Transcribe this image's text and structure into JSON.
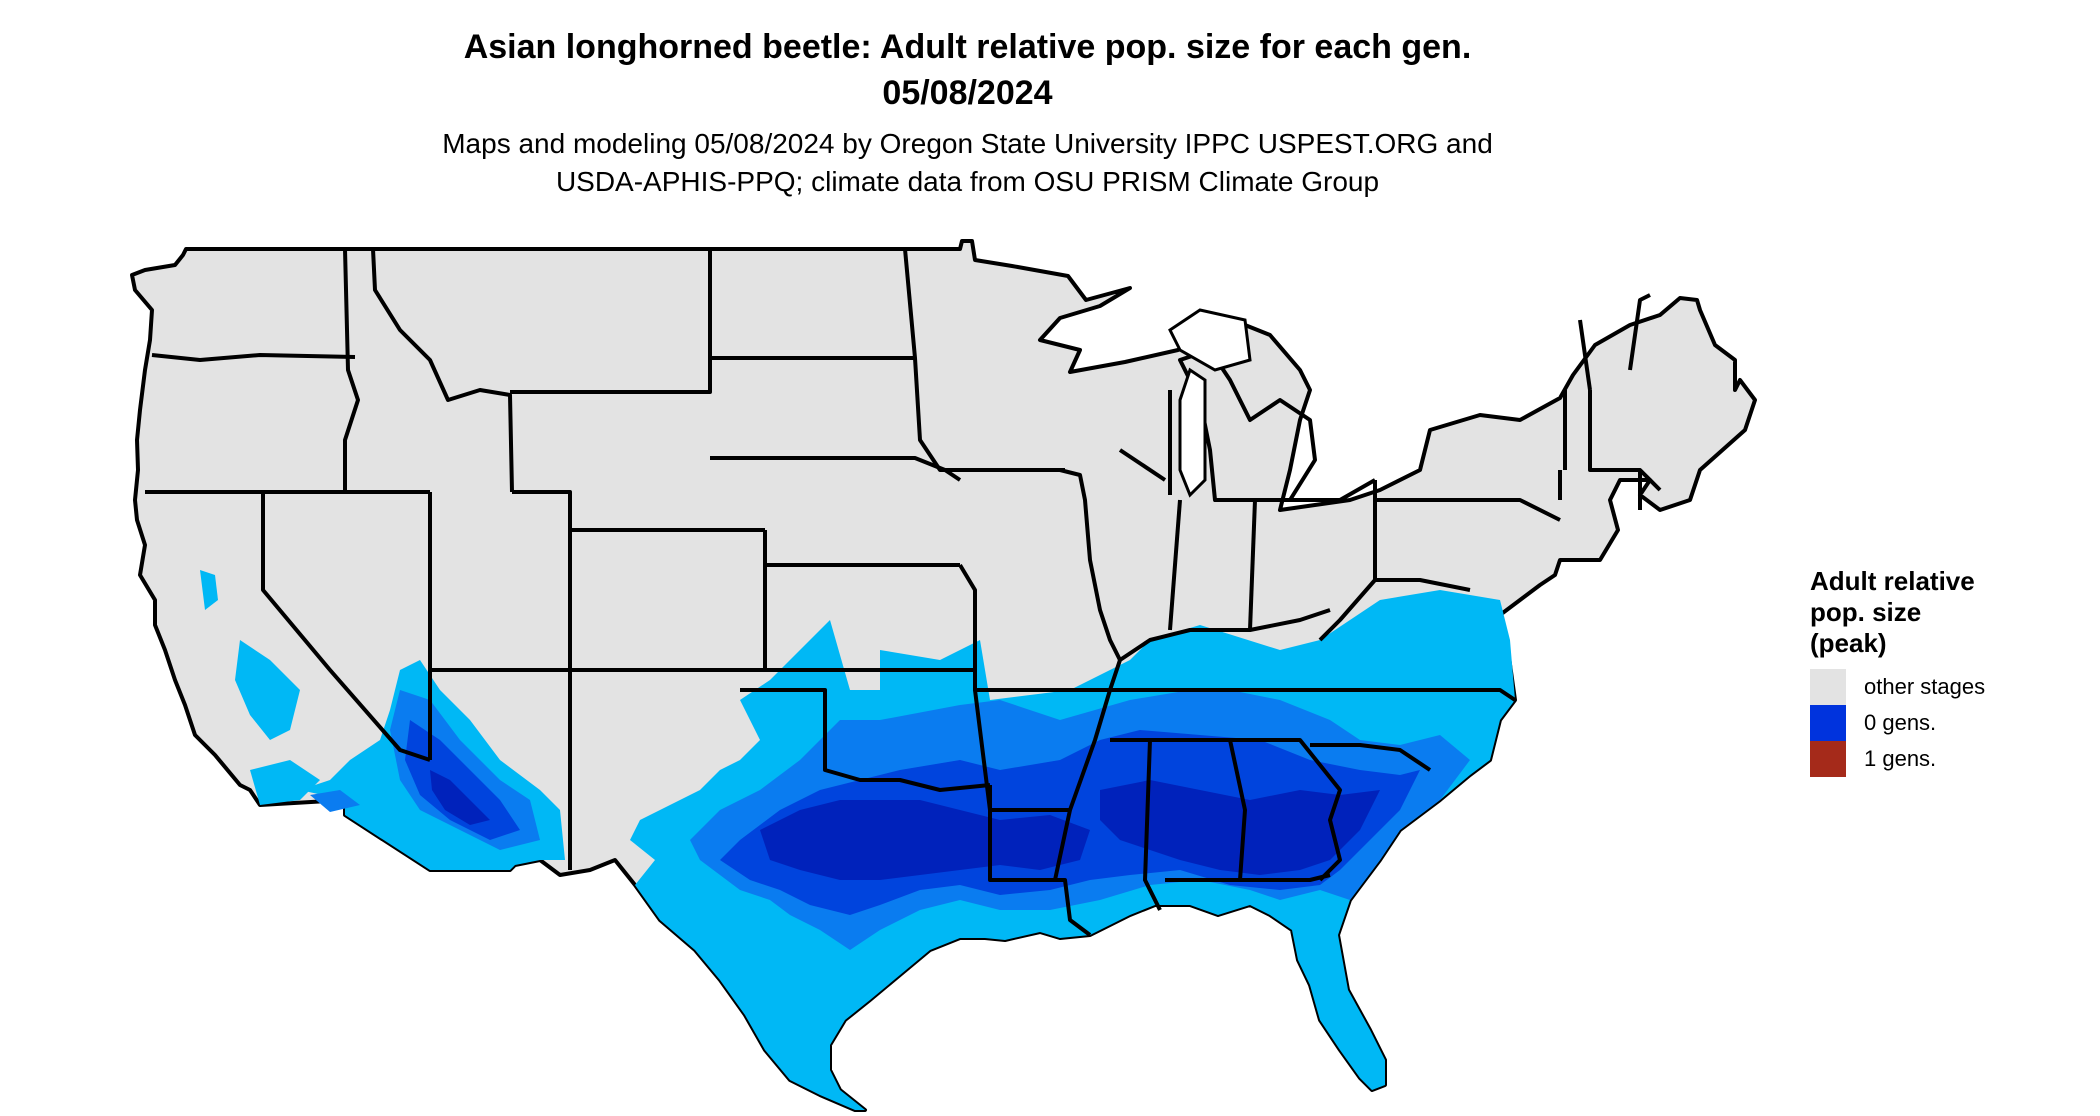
{
  "title_line1": "Asian longhorned beetle: Adult relative pop. size for each gen.",
  "title_line2": "05/08/2024",
  "subtitle_line1": "Maps and modeling 05/08/2024 by Oregon State University IPPC USPEST.ORG and",
  "subtitle_line2": "USDA-APHIS-PPQ; climate data from OSU PRISM Climate Group",
  "legend": {
    "title_line1": "Adult relative",
    "title_line2": "pop. size",
    "title_line3": "(peak)",
    "items": [
      {
        "label": "other stages",
        "color": "#e3e3e3"
      },
      {
        "label": "0 gens.",
        "color": "#0033dd"
      },
      {
        "label": "1 gens.",
        "color": "#a52a1a"
      }
    ]
  },
  "map_colors": {
    "background_land": "#e3e3e3",
    "state_border": "#000000",
    "light_blue": "#00b8f5",
    "mid_blue": "#0a7cf0",
    "dark_blue": "#0044dd",
    "deepest_blue": "#0022bb"
  }
}
